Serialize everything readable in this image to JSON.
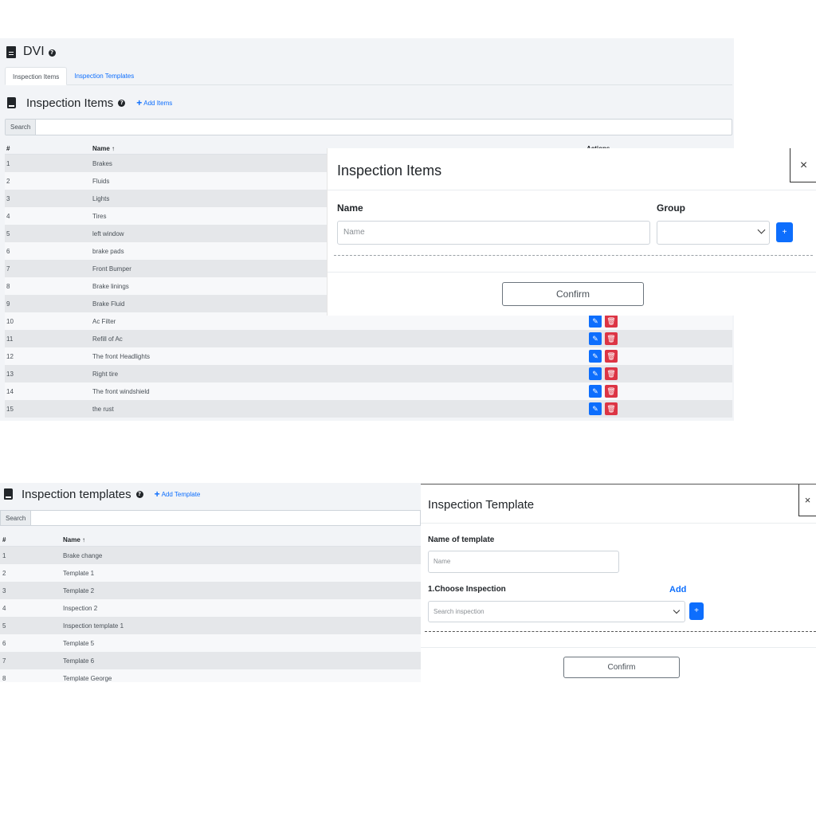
{
  "dvi": {
    "title": "DVI",
    "help": "?",
    "tabs": [
      "Inspection Items",
      "Inspection Templates"
    ]
  },
  "items_section": {
    "title": "Inspection Items",
    "help": "?",
    "add_link": "Add Items",
    "search_label": "Search",
    "columns": {
      "num": "#",
      "name": "Name ↑",
      "actions": "Actions"
    },
    "rows": [
      {
        "num": "1",
        "name": "Brakes"
      },
      {
        "num": "2",
        "name": "Fluids"
      },
      {
        "num": "3",
        "name": "Lights"
      },
      {
        "num": "4",
        "name": "Tires"
      },
      {
        "num": "5",
        "name": "left window"
      },
      {
        "num": "6",
        "name": "brake pads"
      },
      {
        "num": "7",
        "name": "Front Bumper"
      },
      {
        "num": "8",
        "name": "Brake linings"
      },
      {
        "num": "9",
        "name": "Brake Fluid"
      },
      {
        "num": "10",
        "name": "Ac Filter"
      },
      {
        "num": "11",
        "name": "Refill of Ac"
      },
      {
        "num": "12",
        "name": "The front Headlights"
      },
      {
        "num": "13",
        "name": "Right tire"
      },
      {
        "num": "14",
        "name": "The front windshield"
      },
      {
        "num": "15",
        "name": "the rust"
      }
    ]
  },
  "items_modal": {
    "title": "Inspection Items",
    "close": "×",
    "name_label": "Name",
    "name_placeholder": "Name",
    "group_label": "Group",
    "plus": "+",
    "confirm": "Confirm"
  },
  "templates_section": {
    "title": "Inspection templates",
    "help": "?",
    "add_link": "Add Template",
    "search_label": "Search",
    "columns": {
      "num": "#",
      "name": "Name ↑"
    },
    "rows": [
      {
        "num": "1",
        "name": "Brake change"
      },
      {
        "num": "2",
        "name": "Template 1"
      },
      {
        "num": "3",
        "name": "Template 2"
      },
      {
        "num": "4",
        "name": "Inspection 2"
      },
      {
        "num": "5",
        "name": "Inspection template 1"
      },
      {
        "num": "6",
        "name": "Template 5"
      },
      {
        "num": "7",
        "name": "Template 6"
      },
      {
        "num": "8",
        "name": "Template George"
      }
    ]
  },
  "template_modal": {
    "title": "Inspection Template",
    "close": "×",
    "name_label": "Name of template",
    "name_placeholder": "Name",
    "choose_label": "1.Choose Inspection",
    "add": "Add",
    "search_placeholder": "Search inspection",
    "plus": "+",
    "confirm": "Confirm"
  },
  "colors": {
    "primary": "#0d6efd",
    "danger": "#dc3545",
    "panel_bg": "#f2f4f7"
  },
  "icons": {
    "edit": "edit-icon",
    "delete": "trash-icon",
    "page": "document-icon",
    "section": "book-icon"
  }
}
